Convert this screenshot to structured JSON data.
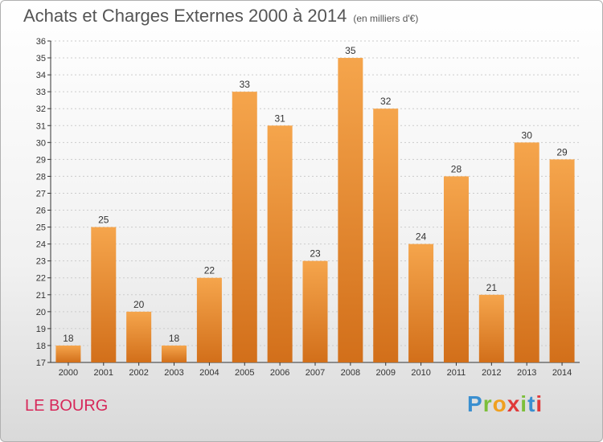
{
  "title": "Achats et Charges Externes 2000 à 2014",
  "subtitle": "(en milliers d'€)",
  "place": "LE BOURG",
  "logo": {
    "letters": [
      "P",
      "r",
      "o",
      "x",
      "i",
      "t",
      "i"
    ],
    "colors": [
      "#3a8fd0",
      "#7cbf3a",
      "#f0a020",
      "#e03a3a",
      "#7cbf3a",
      "#3a8fd0",
      "#e03a3a"
    ]
  },
  "colors": {
    "bar_top": "#f5a54c",
    "bar_bottom": "#d26f1a",
    "axis": "#333333",
    "grid": "#cccccc"
  },
  "chart_data": {
    "type": "bar",
    "categories": [
      "2000",
      "2001",
      "2002",
      "2003",
      "2004",
      "2005",
      "2006",
      "2007",
      "2008",
      "2009",
      "2010",
      "2011",
      "2012",
      "2013",
      "2014"
    ],
    "values": [
      18,
      25,
      20,
      18,
      22,
      33,
      31,
      23,
      35,
      32,
      24,
      28,
      21,
      30,
      29
    ],
    "ylim": [
      17,
      36
    ],
    "yticks": [
      17,
      18,
      19,
      20,
      21,
      22,
      23,
      24,
      25,
      26,
      27,
      28,
      29,
      30,
      31,
      32,
      33,
      34,
      35,
      36
    ],
    "grid": true
  }
}
